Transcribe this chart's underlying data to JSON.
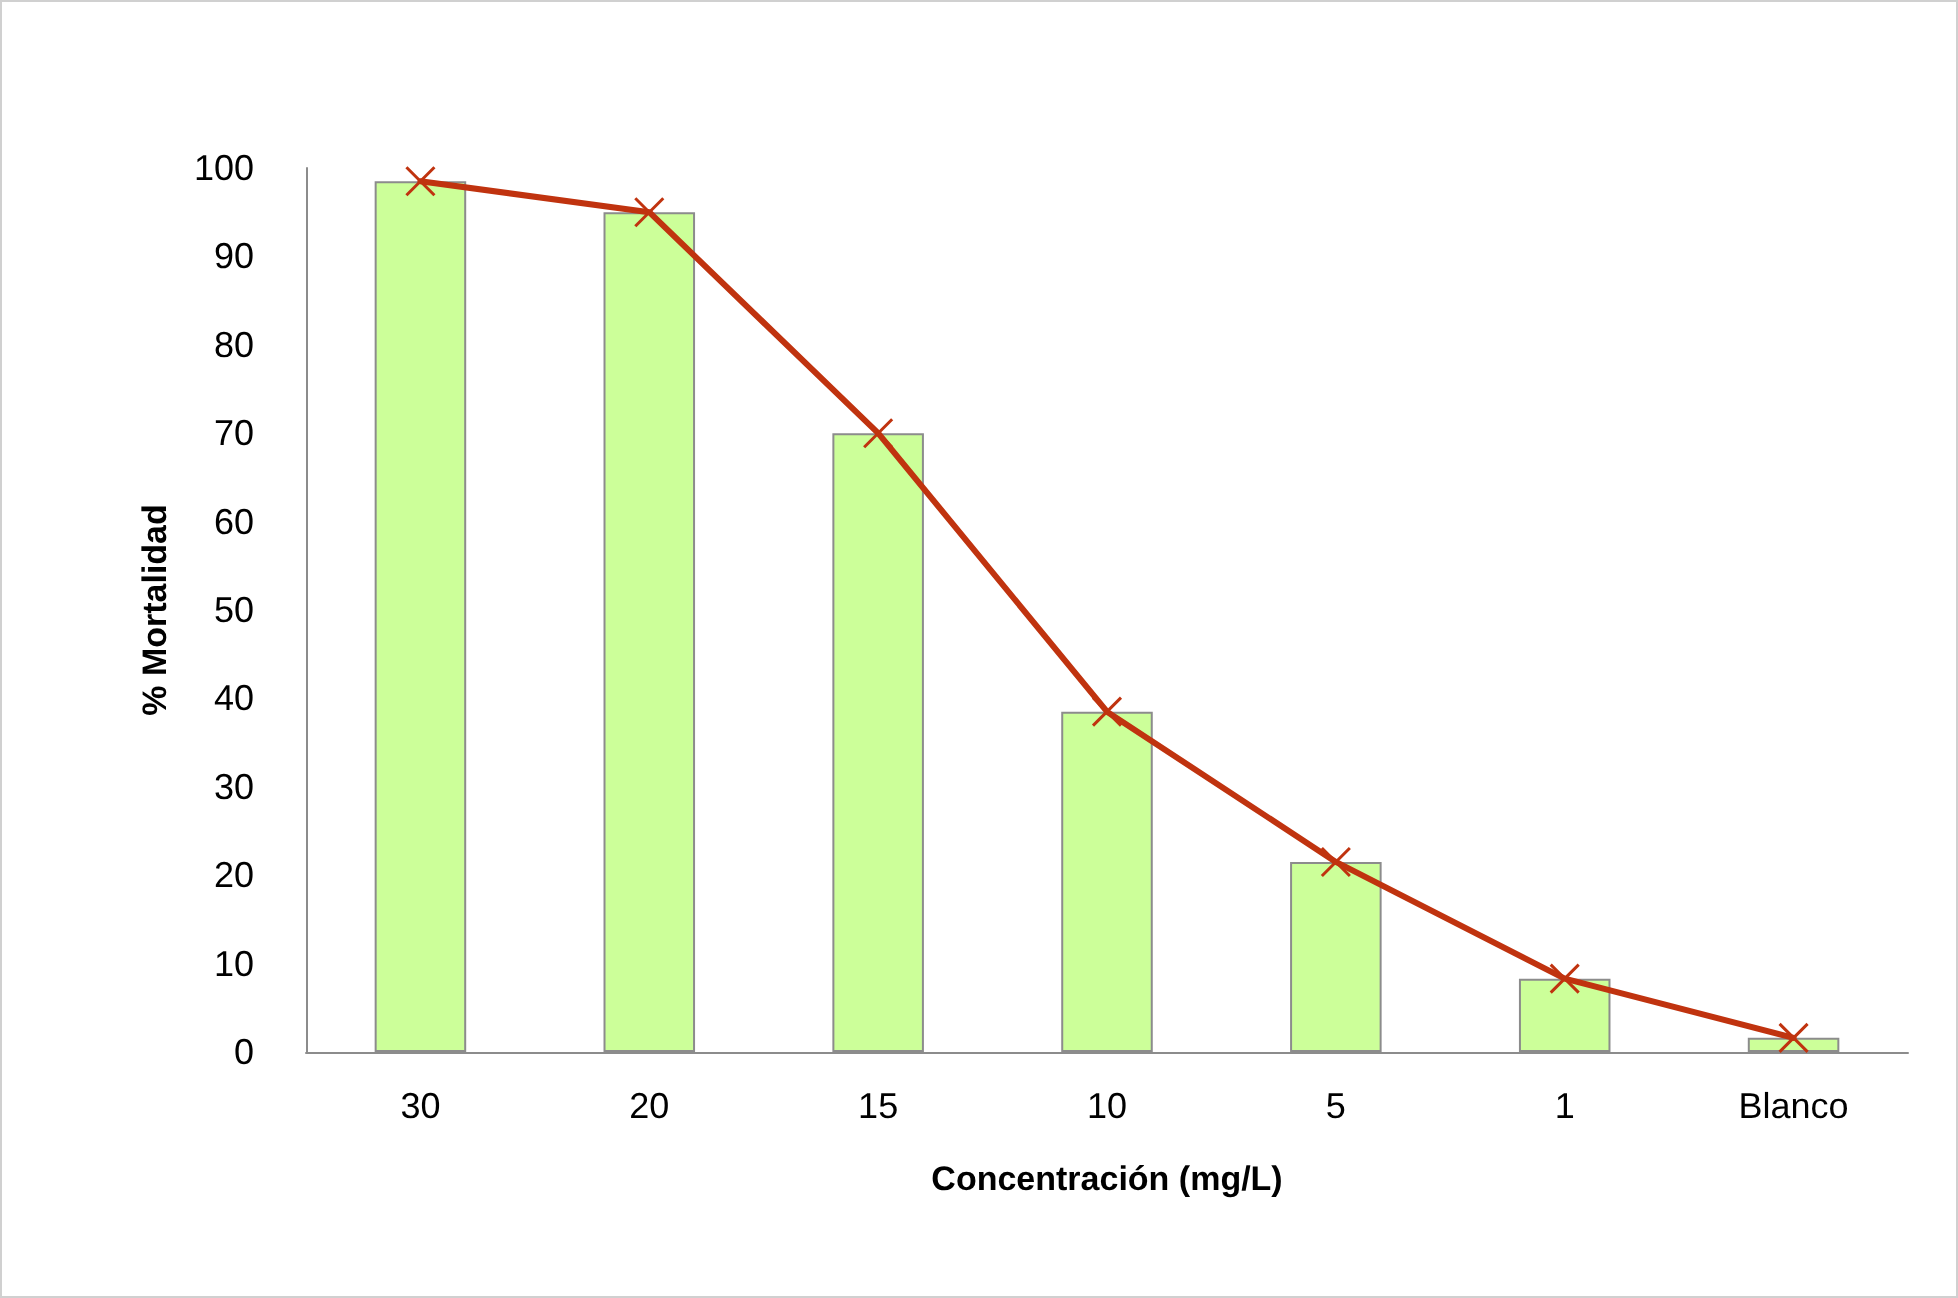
{
  "chart_data": {
    "type": "bar",
    "xlabel": "Concentración (mg/L)",
    "ylabel": "% Mortalidad",
    "categories": [
      "30",
      "20",
      "15",
      "10",
      "5",
      "1",
      "Blanco"
    ],
    "series": [
      {
        "color": "#ccff99",
        "values": [
          98.5,
          95,
          70,
          38.5,
          21.5,
          8.3,
          1.6
        ]
      },
      {
        "type": "line",
        "color": "#c0330f",
        "values": [
          98.5,
          95,
          70,
          38.5,
          21.5,
          8.3,
          1.6
        ]
      }
    ],
    "ylim": [
      0,
      100
    ],
    "yticks": [
      0,
      10,
      20,
      30,
      40,
      50,
      60,
      70,
      80,
      90,
      100
    ],
    "grid": false,
    "marker": "cross",
    "line_style": "solid"
  }
}
